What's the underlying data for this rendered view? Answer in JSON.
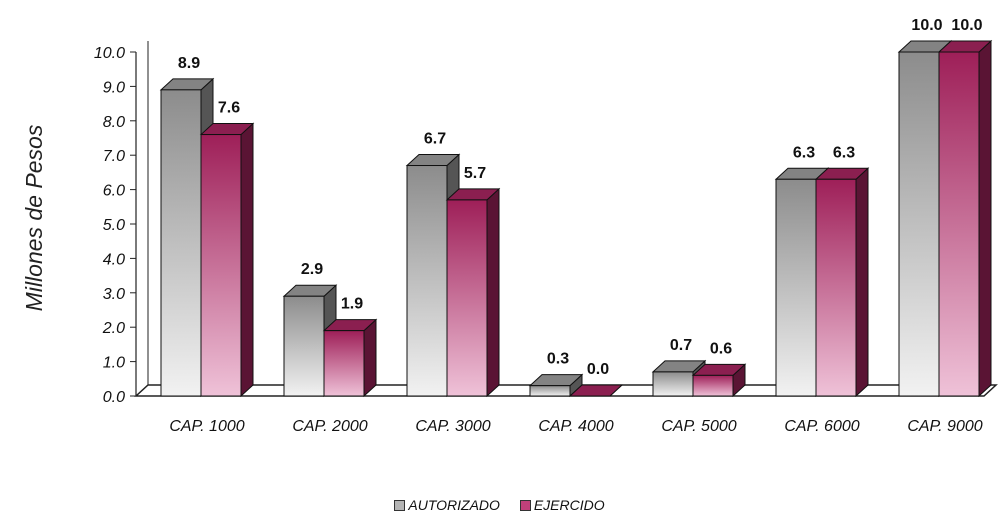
{
  "chart_data": {
    "type": "bar",
    "ylabel": "Millones de Pesos",
    "xlabel": "",
    "categories": [
      "CAP. 1000",
      "CAP. 2000",
      "CAP. 3000",
      "CAP. 4000",
      "CAP. 5000",
      "CAP. 6000",
      "CAP. 9000"
    ],
    "series": [
      {
        "name": "AUTORIZADO",
        "values": [
          8.9,
          2.9,
          6.7,
          0.3,
          0.7,
          6.3,
          10.0
        ],
        "color": "#9a9a9a"
      },
      {
        "name": "EJERCIDO",
        "values": [
          7.6,
          1.9,
          5.7,
          0.0,
          0.6,
          6.3,
          10.0
        ],
        "color": "#a3245e"
      }
    ],
    "data_labels": [
      [
        "8.9",
        "2.9",
        "6.7",
        "0.3",
        "0.7",
        "6.3",
        "10.0"
      ],
      [
        "7.6",
        "1.9",
        "5.7",
        "0.0",
        "0.6",
        "6.3",
        "10.0"
      ]
    ],
    "yticks": [
      "0.0",
      "1.0",
      "2.0",
      "3.0",
      "4.0",
      "5.0",
      "6.0",
      "7.0",
      "8.0",
      "9.0",
      "10.0"
    ],
    "ylim": [
      0,
      10
    ],
    "grid": false,
    "legend_position": "bottom"
  }
}
